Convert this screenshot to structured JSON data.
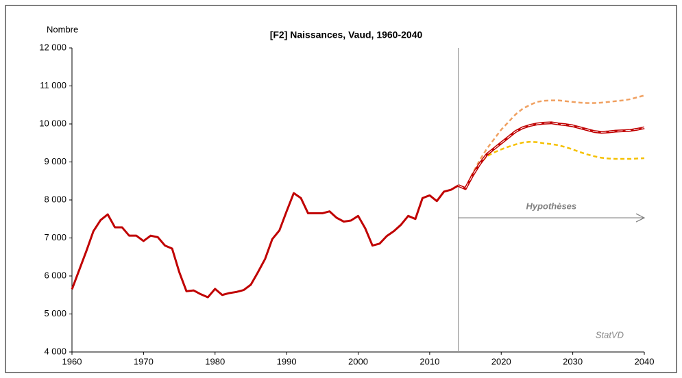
{
  "chart_data": {
    "type": "line",
    "title": "[F2]  Naissances,  Vaud, 1960-2040",
    "ylabel": "Nombre",
    "xlim": [
      1960,
      2040
    ],
    "xticks": [
      1960,
      1970,
      1980,
      1990,
      2000,
      2010,
      2020,
      2030,
      2040
    ],
    "ylim": [
      4000,
      12000
    ],
    "yticks": [
      {
        "value": 4000,
        "label": "4 000"
      },
      {
        "value": 5000,
        "label": "5 000"
      },
      {
        "value": 6000,
        "label": "6 000"
      },
      {
        "value": 7000,
        "label": "7 000"
      },
      {
        "value": 8000,
        "label": "8 000"
      },
      {
        "value": 9000,
        "label": "9 000"
      },
      {
        "value": 10000,
        "label": "10 000"
      },
      {
        "value": 11000,
        "label": "11 000"
      },
      {
        "value": 12000,
        "label": "12 000"
      }
    ],
    "grid": false,
    "vline": 2014,
    "annotations": [
      {
        "text": "Hypothèses",
        "x": [
          2014,
          2040
        ],
        "y": 7530
      }
    ],
    "source": "StatVD",
    "series": [
      {
        "color": "#c00000",
        "width": 3,
        "dash": "none",
        "x": [
          1960,
          1961,
          1962,
          1963,
          1964,
          1965,
          1966,
          1967,
          1968,
          1969,
          1970,
          1971,
          1972,
          1973,
          1974,
          1975,
          1976,
          1977,
          1978,
          1979,
          1980,
          1981,
          1982,
          1983,
          1984,
          1985,
          1986,
          1987,
          1988,
          1989,
          1990,
          1991,
          1992,
          1993,
          1994,
          1995,
          1996,
          1997,
          1998,
          1999,
          2000,
          2001,
          2002,
          2003,
          2004,
          2005,
          2006,
          2007,
          2008,
          2009,
          2010,
          2011,
          2012,
          2013,
          2014
        ],
        "values": [
          5650,
          6150,
          6650,
          7180,
          7470,
          7620,
          7280,
          7280,
          7060,
          7060,
          6920,
          7060,
          7020,
          6800,
          6720,
          6100,
          5600,
          5620,
          5520,
          5440,
          5660,
          5500,
          5550,
          5580,
          5630,
          5770,
          6100,
          6450,
          6970,
          7200,
          7700,
          8180,
          8050,
          7650,
          7650,
          7650,
          7700,
          7530,
          7430,
          7460,
          7580,
          7250,
          6800,
          6850,
          7050,
          7180,
          7350,
          7580,
          7500,
          8050,
          8120,
          7970,
          8220,
          8270,
          8380
        ]
      },
      {
        "color": "#f0a060",
        "width": 2.5,
        "dash": "6 4",
        "x": [
          2014,
          2015,
          2016,
          2017,
          2018,
          2019,
          2020,
          2021,
          2022,
          2023,
          2024,
          2025,
          2026,
          2027,
          2028,
          2029,
          2030,
          2031,
          2032,
          2033,
          2034,
          2035,
          2036,
          2037,
          2038,
          2039,
          2040
        ],
        "values": [
          8380,
          8300,
          8700,
          9050,
          9350,
          9600,
          9850,
          10050,
          10250,
          10400,
          10500,
          10580,
          10610,
          10620,
          10620,
          10600,
          10580,
          10560,
          10550,
          10550,
          10560,
          10580,
          10600,
          10620,
          10650,
          10700,
          10750
        ]
      },
      {
        "color": "#f5c000",
        "width": 2.5,
        "dash": "6 4",
        "x": [
          2014,
          2015,
          2016,
          2017,
          2018,
          2019,
          2020,
          2021,
          2022,
          2023,
          2024,
          2025,
          2026,
          2027,
          2028,
          2029,
          2030,
          2031,
          2032,
          2033,
          2034,
          2035,
          2036,
          2037,
          2038,
          2039,
          2040
        ],
        "values": [
          8380,
          8300,
          8650,
          8950,
          9150,
          9250,
          9330,
          9400,
          9460,
          9510,
          9530,
          9520,
          9490,
          9470,
          9440,
          9390,
          9330,
          9260,
          9200,
          9150,
          9110,
          9090,
          9080,
          9080,
          9080,
          9090,
          9100
        ]
      },
      {
        "color": "#c00000",
        "width": 4,
        "dash": "none",
        "overlay": "#ffffff",
        "x": [
          2014,
          2015,
          2016,
          2017,
          2018,
          2019,
          2020,
          2021,
          2022,
          2023,
          2024,
          2025,
          2026,
          2027,
          2028,
          2029,
          2030,
          2031,
          2032,
          2033,
          2034,
          2035,
          2036,
          2037,
          2038,
          2039,
          2040
        ],
        "values": [
          8380,
          8300,
          8650,
          8950,
          9200,
          9350,
          9500,
          9650,
          9800,
          9900,
          9960,
          10000,
          10020,
          10030,
          10000,
          9980,
          9950,
          9900,
          9850,
          9800,
          9780,
          9790,
          9810,
          9820,
          9830,
          9860,
          9900
        ]
      }
    ]
  }
}
